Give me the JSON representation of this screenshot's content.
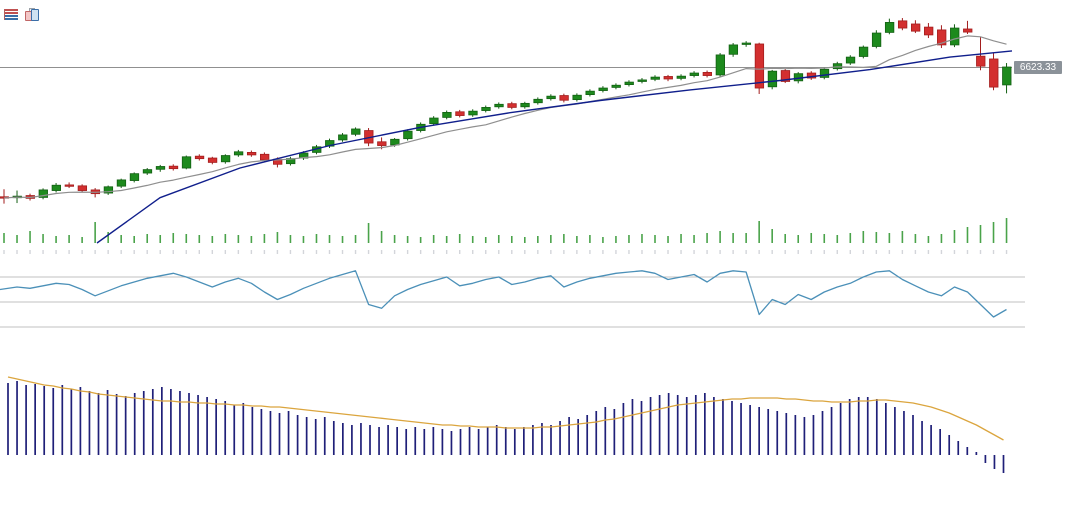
{
  "window": {
    "title": "candlestick-chart"
  },
  "toolbar": {
    "icons": [
      {
        "name": "table-view-icon"
      },
      {
        "name": "chart-clipboard-icon"
      }
    ]
  },
  "price_label": "6623.33",
  "colors": {
    "bull": "#1d8a1d",
    "bull_edge": "#136013",
    "bear": "#d32f2f",
    "bear_edge": "#a31d1d",
    "ma_fast": "#8f8f8f",
    "ma_slow": "#101f8c",
    "price_line": "#909090",
    "label_bg": "#8b9299",
    "label_text": "#ffffff",
    "volume": "#4aa34a",
    "date_tick": "#d3d5da",
    "osc_line": "#4b90b8",
    "gridline": "#c0c0c0",
    "macd_bar": "#1f1f78",
    "macd_signal": "#dba53e"
  },
  "chart_data": {
    "type": "candlestick",
    "title": "",
    "panels": [
      "price",
      "volume",
      "oscillator",
      "macd"
    ],
    "last_price": 6623.33,
    "price_axis": {
      "anchor_price": 6623.33,
      "approx_range": [
        6040,
        6800
      ],
      "grid": false
    },
    "candles": {
      "count": 78,
      "ohlc": [
        [
          6208,
          6232,
          6186,
          6204
        ],
        [
          6205,
          6228,
          6188,
          6210
        ],
        [
          6212,
          6218,
          6196,
          6203
        ],
        [
          6206,
          6235,
          6200,
          6230
        ],
        [
          6228,
          6252,
          6222,
          6245
        ],
        [
          6246,
          6254,
          6236,
          6242
        ],
        [
          6243,
          6248,
          6222,
          6228
        ],
        [
          6230,
          6236,
          6206,
          6218
        ],
        [
          6220,
          6244,
          6214,
          6240
        ],
        [
          6242,
          6266,
          6236,
          6262
        ],
        [
          6260,
          6286,
          6254,
          6282
        ],
        [
          6284,
          6300,
          6278,
          6295
        ],
        [
          6296,
          6310,
          6288,
          6305
        ],
        [
          6306,
          6312,
          6292,
          6298
        ],
        [
          6300,
          6340,
          6296,
          6336
        ],
        [
          6338,
          6344,
          6324,
          6330
        ],
        [
          6332,
          6336,
          6312,
          6318
        ],
        [
          6320,
          6344,
          6314,
          6340
        ],
        [
          6342,
          6358,
          6336,
          6352
        ],
        [
          6350,
          6356,
          6336,
          6342
        ],
        [
          6344,
          6350,
          6320,
          6326
        ],
        [
          6328,
          6334,
          6302,
          6312
        ],
        [
          6314,
          6336,
          6308,
          6330
        ],
        [
          6332,
          6354,
          6326,
          6348
        ],
        [
          6350,
          6374,
          6344,
          6368
        ],
        [
          6370,
          6394,
          6364,
          6388
        ],
        [
          6390,
          6412,
          6384,
          6406
        ],
        [
          6408,
          6430,
          6402,
          6425
        ],
        [
          6420,
          6428,
          6370,
          6380
        ],
        [
          6384,
          6398,
          6360,
          6372
        ],
        [
          6374,
          6396,
          6368,
          6392
        ],
        [
          6394,
          6424,
          6388,
          6418
        ],
        [
          6420,
          6446,
          6414,
          6440
        ],
        [
          6442,
          6466,
          6436,
          6460
        ],
        [
          6462,
          6484,
          6456,
          6478
        ],
        [
          6480,
          6486,
          6462,
          6468
        ],
        [
          6470,
          6488,
          6464,
          6482
        ],
        [
          6484,
          6500,
          6478,
          6494
        ],
        [
          6496,
          6510,
          6490,
          6504
        ],
        [
          6506,
          6512,
          6488,
          6494
        ],
        [
          6496,
          6512,
          6490,
          6507
        ],
        [
          6509,
          6526,
          6503,
          6520
        ],
        [
          6522,
          6536,
          6516,
          6530
        ],
        [
          6532,
          6538,
          6510,
          6517
        ],
        [
          6519,
          6539,
          6513,
          6533
        ],
        [
          6535,
          6552,
          6529,
          6546
        ],
        [
          6548,
          6562,
          6542,
          6556
        ],
        [
          6558,
          6571,
          6552,
          6565
        ],
        [
          6567,
          6581,
          6561,
          6575
        ],
        [
          6577,
          6588,
          6571,
          6582
        ],
        [
          6584,
          6597,
          6578,
          6591
        ],
        [
          6593,
          6598,
          6578,
          6585
        ],
        [
          6587,
          6600,
          6581,
          6594
        ],
        [
          6596,
          6610,
          6590,
          6604
        ],
        [
          6606,
          6612,
          6590,
          6596
        ],
        [
          6598,
          6668,
          6592,
          6662
        ],
        [
          6664,
          6700,
          6656,
          6694
        ],
        [
          6696,
          6706,
          6688,
          6700
        ],
        [
          6697,
          6701,
          6537,
          6556
        ],
        [
          6560,
          6614,
          6552,
          6610
        ],
        [
          6612,
          6618,
          6572,
          6577
        ],
        [
          6579,
          6607,
          6571,
          6602
        ],
        [
          6604,
          6610,
          6582,
          6588
        ],
        [
          6590,
          6622,
          6584,
          6616
        ],
        [
          6618,
          6640,
          6612,
          6634
        ],
        [
          6636,
          6661,
          6630,
          6655
        ],
        [
          6657,
          6692,
          6651,
          6687
        ],
        [
          6689,
          6741,
          6683,
          6732
        ],
        [
          6734,
          6778,
          6728,
          6766
        ],
        [
          6771,
          6780,
          6741,
          6748
        ],
        [
          6761,
          6773,
          6732,
          6738
        ],
        [
          6751,
          6764,
          6716,
          6726
        ],
        [
          6742,
          6757,
          6684,
          6694
        ],
        [
          6694,
          6760,
          6687,
          6748
        ],
        [
          6745,
          6771,
          6729,
          6735
        ],
        [
          6658,
          6719,
          6613,
          6626
        ],
        [
          6649,
          6668,
          6549,
          6559
        ],
        [
          6566,
          6636,
          6539,
          6623.33
        ]
      ]
    },
    "volume": [
      10,
      8,
      12,
      9,
      7,
      8,
      6,
      21,
      11,
      8,
      7,
      9,
      8,
      10,
      9,
      8,
      7,
      9,
      8,
      7,
      9,
      11,
      8,
      7,
      9,
      8,
      7,
      8,
      20,
      12,
      8,
      7,
      6,
      8,
      7,
      9,
      7,
      6,
      8,
      7,
      6,
      7,
      8,
      9,
      7,
      8,
      6,
      7,
      8,
      9,
      8,
      7,
      9,
      8,
      10,
      12,
      10,
      10,
      22,
      14,
      9,
      8,
      10,
      9,
      8,
      10,
      12,
      11,
      10,
      12,
      9,
      7,
      9,
      13,
      16,
      18,
      21,
      25
    ],
    "ma_fast": {
      "name": "SMA-10",
      "period": 10,
      "derived_from": "closes"
    },
    "ma_slow_points": [
      [
        97,
        6060
      ],
      [
        160,
        6205
      ],
      [
        240,
        6300
      ],
      [
        330,
        6372
      ],
      [
        420,
        6430
      ],
      [
        510,
        6477
      ],
      [
        600,
        6516
      ],
      [
        690,
        6550
      ],
      [
        780,
        6580
      ],
      [
        870,
        6615
      ],
      [
        950,
        6655
      ],
      [
        1012,
        6675
      ]
    ],
    "oscillator": {
      "gridline_values": [
        70,
        50,
        30
      ],
      "values": [
        60,
        62,
        61,
        63,
        65,
        64,
        60,
        55,
        59,
        63,
        66,
        69,
        71,
        73,
        70,
        66,
        62,
        66,
        69,
        65,
        58,
        52,
        56,
        61,
        65,
        69,
        72,
        75,
        48,
        45,
        55,
        60,
        64,
        67,
        70,
        63,
        65,
        68,
        70,
        64,
        66,
        69,
        71,
        62,
        66,
        69,
        71,
        73,
        74,
        75,
        73,
        68,
        70,
        72,
        66,
        73,
        75,
        74,
        40,
        52,
        48,
        56,
        52,
        58,
        62,
        65,
        70,
        74,
        75,
        68,
        63,
        58,
        55,
        62,
        58,
        48,
        38,
        44
      ]
    },
    "macd": {
      "bars": [
        72,
        74,
        70,
        71,
        69,
        67,
        70,
        66,
        68,
        64,
        62,
        65,
        61,
        59,
        62,
        64,
        66,
        68,
        66,
        64,
        62,
        60,
        58,
        56,
        54,
        50,
        52,
        48,
        46,
        44,
        42,
        44,
        40,
        38,
        36,
        38,
        34,
        32,
        30,
        32,
        30,
        28,
        30,
        28,
        26,
        28,
        26,
        28,
        26,
        24,
        26,
        28,
        26,
        28,
        30,
        28,
        26,
        28,
        30,
        32,
        30,
        34,
        38,
        36,
        40,
        44,
        48,
        46,
        52,
        56,
        54,
        58,
        60,
        62,
        60,
        58,
        60,
        62,
        58,
        56,
        54,
        52,
        50,
        48,
        46,
        44,
        42,
        40,
        38,
        40,
        44,
        48,
        52,
        56,
        58,
        58,
        56,
        52,
        48,
        44,
        40,
        34,
        30,
        26,
        20,
        14,
        8,
        3,
        -8,
        -14,
        -18
      ],
      "signal": [
        78,
        76,
        74,
        72,
        70,
        69,
        67,
        66,
        64,
        63,
        61,
        60,
        59,
        58,
        57,
        56,
        55,
        54,
        54,
        53,
        53,
        52,
        52,
        51,
        51,
        50,
        50,
        49,
        49,
        48,
        48,
        47,
        46,
        45,
        44,
        43,
        42,
        41,
        40,
        39,
        38,
        37,
        36,
        35,
        34,
        33,
        32,
        31,
        30,
        30,
        29,
        29,
        28,
        28,
        28,
        27,
        27,
        27,
        27,
        28,
        28,
        29,
        30,
        31,
        32,
        33,
        35,
        36,
        38,
        40,
        42,
        44,
        46,
        48,
        50,
        51,
        52,
        53,
        54,
        55,
        56,
        56,
        57,
        57,
        57,
        57,
        56,
        56,
        55,
        54,
        54,
        53,
        53,
        53,
        54,
        54,
        55,
        55,
        54,
        53,
        52,
        50,
        48,
        45,
        42,
        38,
        34,
        30,
        25,
        20,
        15
      ]
    }
  }
}
